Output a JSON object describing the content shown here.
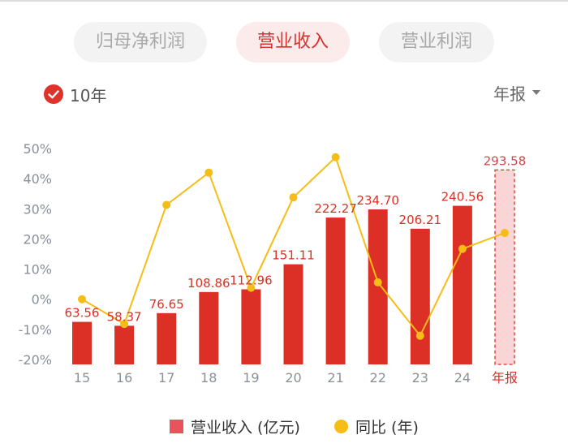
{
  "tabs": [
    {
      "label": "归母净利润",
      "active": false
    },
    {
      "label": "营业收入",
      "active": true
    },
    {
      "label": "营业利润",
      "active": false
    }
  ],
  "range_toggle": {
    "label": "10年",
    "checked": true
  },
  "period_select": {
    "label": "年报"
  },
  "legend": {
    "bar_label": "营业收入 (亿元)",
    "line_label": "同比 (年)"
  },
  "colors": {
    "bar": "#dc2f26",
    "line": "#f6bd16",
    "accent": "#e0322d",
    "forecast_fill": "#f9d5d5",
    "axis_text": "#8a8f99"
  },
  "chart_data": {
    "type": "bar",
    "categories": [
      "15",
      "16",
      "17",
      "18",
      "19",
      "20",
      "21",
      "22",
      "23",
      "24",
      "年报"
    ],
    "y_ticks": [
      "50%",
      "40%",
      "30%",
      "20%",
      "10%",
      "0%",
      "-10%",
      "-20%"
    ],
    "ylim": [
      -20,
      50
    ],
    "series": [
      {
        "type": "bar",
        "values": [
          63.56,
          58.37,
          76.65,
          108.86,
          112.96,
          151.11,
          222.27,
          234.7,
          206.21,
          240.56,
          293.58
        ],
        "value_labels": [
          "63.56",
          "58.37",
          "76.65",
          "108.86",
          "112.96",
          "151.11",
          "222.27",
          "234.70",
          "206.21",
          "240.56",
          "293.58"
        ],
        "bar_top_percent": [
          -7.5,
          -8.8,
          -4.6,
          2.4,
          3.3,
          11.6,
          27.1,
          29.8,
          23.4,
          31.0,
          42.9
        ],
        "highlight_last": true
      },
      {
        "type": "line",
        "values": [
          0.0,
          -8.2,
          31.3,
          42.0,
          3.8,
          33.8,
          47.1,
          5.6,
          -12.1,
          16.7,
          22.0
        ]
      }
    ]
  }
}
